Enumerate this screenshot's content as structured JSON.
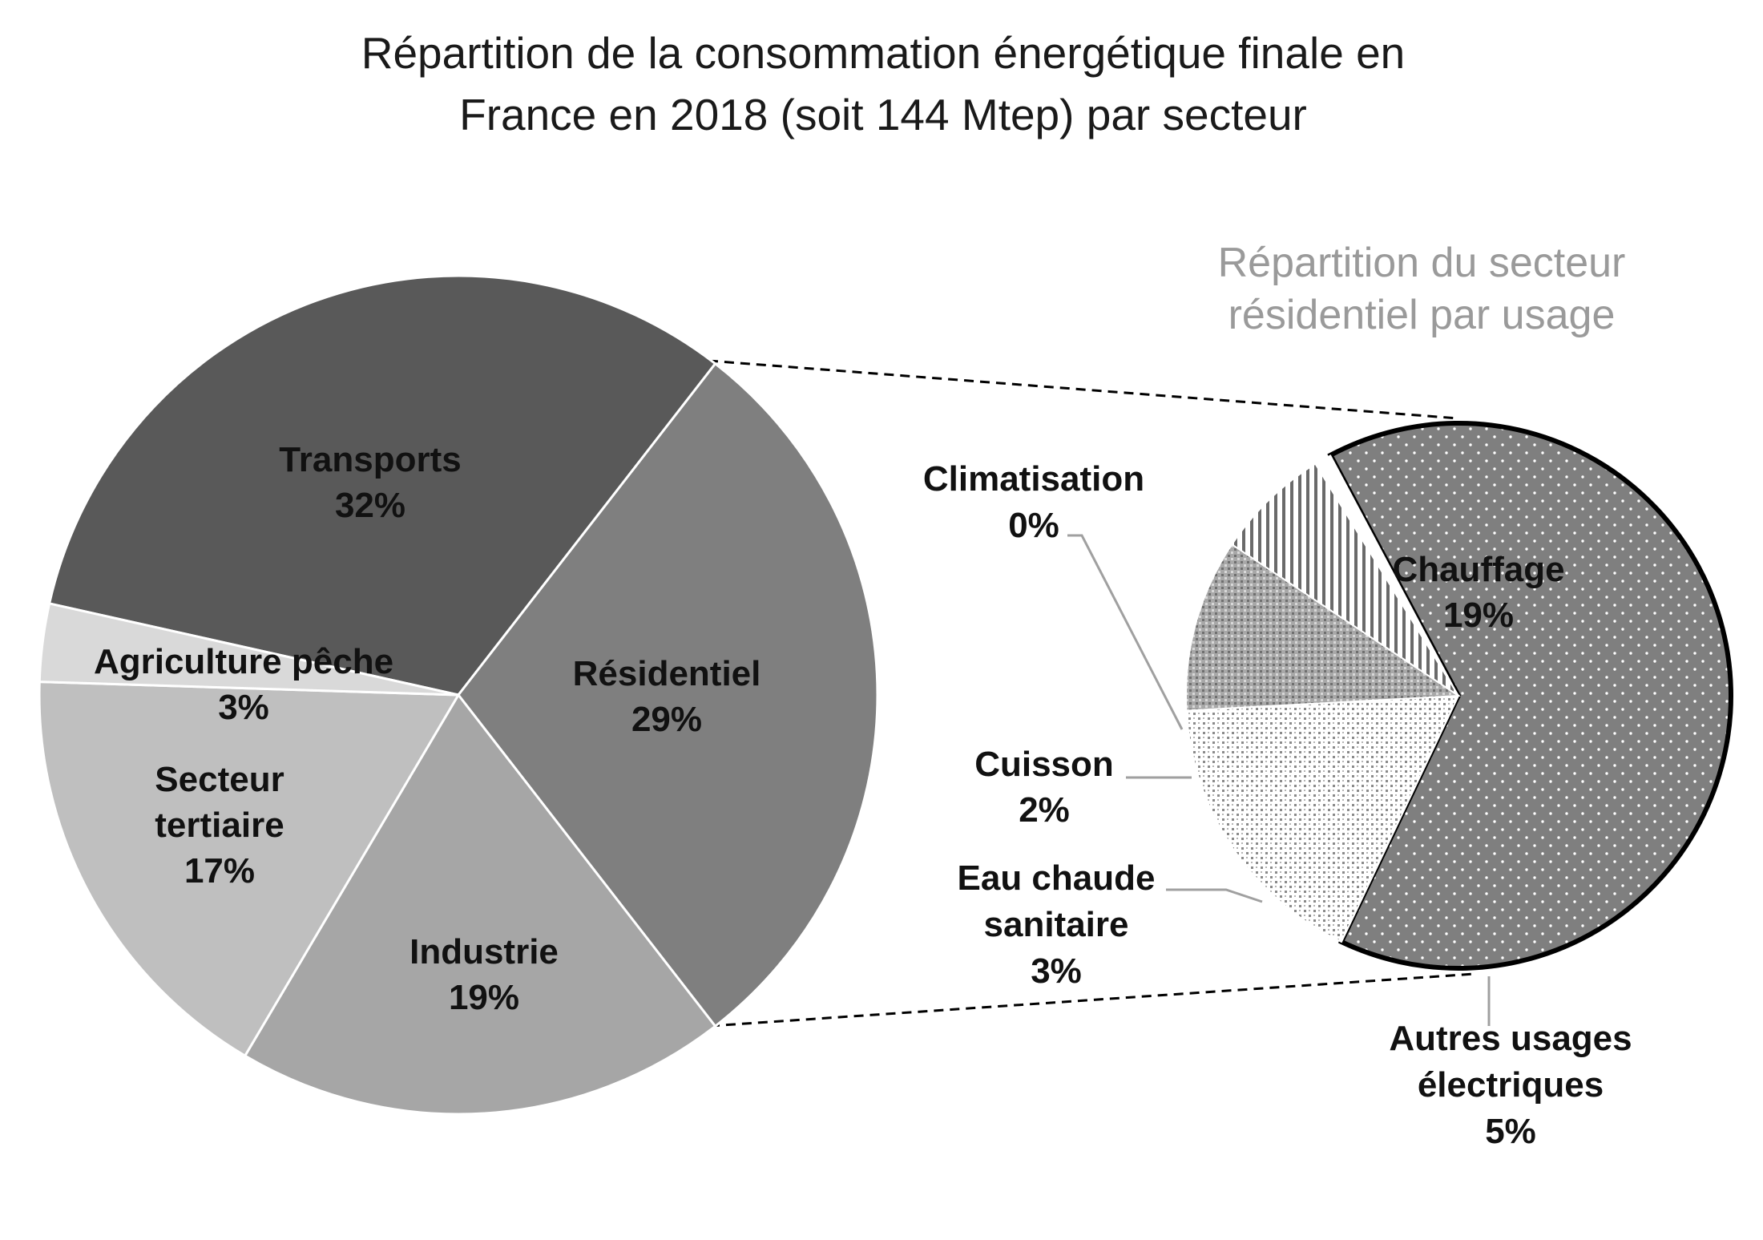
{
  "chart_data": [
    {
      "type": "pie",
      "title": "Répartition de la consommation énergétique finale en France en 2018 (soit 144 Mtep) par secteur",
      "title_lines": [
        "Répartition de la consommation énergétique finale en",
        "France en 2018 (soit 144 Mtep) par secteur"
      ],
      "unit": "%",
      "slices": [
        {
          "name": "Transports",
          "value": 32,
          "label": "32%",
          "color": "#595959"
        },
        {
          "name": "Résidentiel",
          "value": 29,
          "label": "29%",
          "color": "#7f7f7f"
        },
        {
          "name": "Industrie",
          "value": 19,
          "label": "19%",
          "color": "#a6a6a6"
        },
        {
          "name": "Secteur tertiaire",
          "value": 17,
          "label": "17%",
          "color": "#bfbfbf"
        },
        {
          "name": "Agriculture pêche",
          "value": 3,
          "label": "3%",
          "color": "#d9d9d9"
        }
      ],
      "exploded_slice": "Résidentiel"
    },
    {
      "type": "pie",
      "title": "Répartition du secteur résidentiel par usage",
      "title_lines": [
        "Répartition du secteur",
        "résidentiel par usage"
      ],
      "unit": "%",
      "slices": [
        {
          "name": "Chauffage",
          "value": 19,
          "label": "19%",
          "color": "#7f7f7f"
        },
        {
          "name": "Autres usages électriques",
          "value": 5,
          "label": "5%",
          "color": "#d9d9d9"
        },
        {
          "name": "Eau chaude sanitaire",
          "value": 3,
          "label": "3%",
          "color": "#a6a6a6"
        },
        {
          "name": "Cuisson",
          "value": 2,
          "label": "2%",
          "color": "#ffffff"
        },
        {
          "name": "Climatisation",
          "value": 0,
          "label": "0%",
          "color": "#ffffff"
        }
      ]
    }
  ]
}
